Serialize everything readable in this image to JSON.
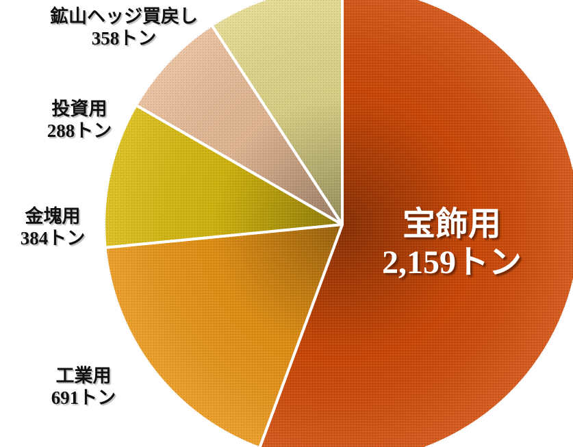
{
  "chart_data": {
    "type": "pie",
    "unit": "トン",
    "slices": [
      {
        "category": "宝飾用",
        "value": 2159,
        "value_label": "2,159トン",
        "color": "#d04a08"
      },
      {
        "category": "工業用",
        "value": 691,
        "value_label": "691トン",
        "color": "#e89416"
      },
      {
        "category": "金塊用",
        "value": 384,
        "value_label": "384トン",
        "color": "#d8ba10"
      },
      {
        "category": "投資用",
        "value": 288,
        "value_label": "288トン",
        "color": "#e8bc98"
      },
      {
        "category": "鉱山ヘッジ買戻し",
        "value": 358,
        "value_label": "358トン",
        "color": "#e2d88c"
      }
    ],
    "legend": "none"
  }
}
